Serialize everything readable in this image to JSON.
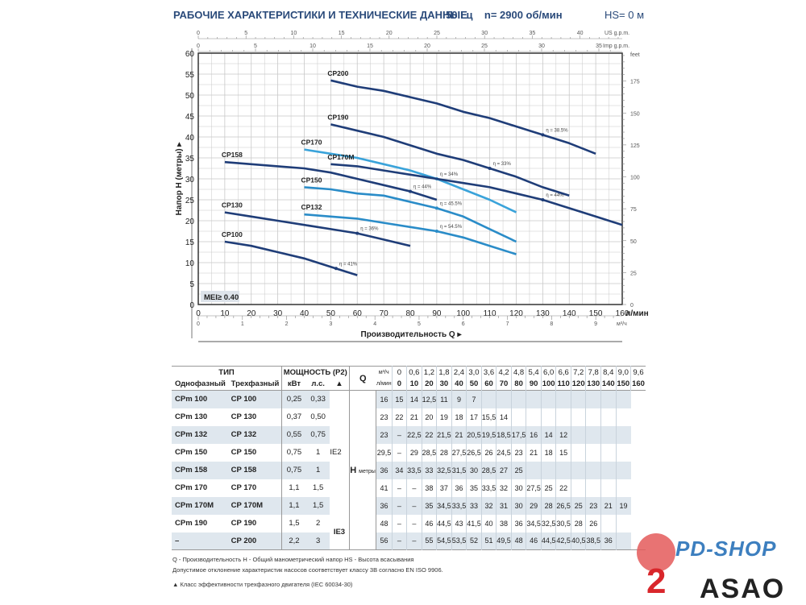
{
  "header": {
    "title": "РАБОЧИЕ ХАРАКТЕРИСТИКИ И ТЕХНИЧЕСКИЕ ДАННЫЕ",
    "conditions": "50 Гц    n= 2900 об/мин",
    "hs": "HS= 0 м"
  },
  "chart_data": {
    "type": "line",
    "xlabel": "Производительность Q ▸",
    "ylabel": "Напор H (метры) ▸",
    "x_unit": "л/мин",
    "xlim": [
      0,
      160
    ],
    "ylim": [
      0,
      60
    ],
    "x_ticks": [
      0,
      10,
      20,
      30,
      40,
      50,
      60,
      70,
      80,
      90,
      100,
      110,
      120,
      130,
      140,
      150,
      160
    ],
    "y_ticks": [
      0,
      5,
      10,
      15,
      20,
      25,
      30,
      35,
      40,
      45,
      50,
      55,
      60
    ],
    "feet_label": "feet",
    "feet_ticks": [
      0,
      25,
      50,
      75,
      100,
      125,
      150,
      175
    ],
    "usgpm_label": "US g.p.m.",
    "usgpm_ticks": [
      0,
      5,
      10,
      15,
      20,
      25,
      30,
      35,
      40
    ],
    "impgpm_label": "Imp g.p.m.",
    "impgpm_ticks": [
      0,
      5,
      10,
      15,
      20,
      25,
      30,
      35
    ],
    "m3h_label": "м³/ч",
    "m3h_ticks": [
      0,
      1,
      2,
      3,
      4,
      5,
      6,
      7,
      8,
      9
    ],
    "mei": "MEI≥ 0.40",
    "grid": true,
    "series": [
      {
        "name": "CP100",
        "color": "#1f3d78",
        "x": [
          10,
          20,
          30,
          40,
          50,
          60
        ],
        "y": [
          15,
          14,
          12.5,
          11,
          9,
          7
        ],
        "eta": "η = 41%",
        "eta_q": 52
      },
      {
        "name": "CP130",
        "color": "#1f3d78",
        "x": [
          10,
          20,
          30,
          40,
          50,
          60,
          70,
          80
        ],
        "y": [
          22,
          21,
          20,
          19,
          18,
          17,
          15.5,
          14
        ],
        "eta": "η = 36%",
        "eta_q": 60
      },
      {
        "name": "CP132",
        "color": "#2a8cc8",
        "x": [
          40,
          50,
          60,
          70,
          80,
          90,
          100,
          110,
          120
        ],
        "y": [
          21.5,
          21,
          20.5,
          19.5,
          18.5,
          17.5,
          16,
          14,
          12
        ],
        "eta": "η = 54.5%",
        "eta_q": 90
      },
      {
        "name": "CP150",
        "color": "#2a8cc8",
        "x": [
          40,
          50,
          60,
          70,
          80,
          90,
          100,
          110,
          120
        ],
        "y": [
          28,
          27.5,
          26.5,
          26,
          24.5,
          23,
          21,
          18,
          15
        ],
        "eta": "η = 45.5%",
        "eta_q": 90
      },
      {
        "name": "CP158",
        "color": "#1f3d78",
        "x": [
          10,
          20,
          30,
          40,
          50,
          60,
          70,
          80,
          90
        ],
        "y": [
          34,
          33.5,
          33,
          32.5,
          31.5,
          30,
          28.5,
          27,
          25
        ],
        "eta": "η = 44%",
        "eta_q": 80
      },
      {
        "name": "CP170",
        "color": "#3aa3da",
        "x": [
          40,
          50,
          60,
          70,
          80,
          90,
          100,
          110,
          120
        ],
        "y": [
          37,
          36,
          35,
          33.5,
          32,
          30,
          27.5,
          25,
          22
        ],
        "eta": "η = 34%",
        "eta_q": 90
      },
      {
        "name": "CP170M",
        "color": "#1f3d78",
        "x": [
          50,
          60,
          70,
          80,
          90,
          100,
          110,
          120,
          130,
          140,
          150,
          160
        ],
        "y": [
          33.5,
          33,
          32,
          31,
          30,
          29,
          28,
          26.5,
          25,
          23,
          21,
          19
        ],
        "eta": "η = 44%",
        "eta_q": 130
      },
      {
        "name": "CP190",
        "color": "#1f3d78",
        "x": [
          50,
          60,
          70,
          80,
          90,
          100,
          110,
          120,
          130,
          140
        ],
        "y": [
          43,
          41.5,
          40,
          38,
          36,
          34.5,
          32.5,
          30.5,
          28,
          26
        ],
        "eta": "η = 33%",
        "eta_q": 110
      },
      {
        "name": "CP200",
        "color": "#1f3d78",
        "x": [
          50,
          60,
          70,
          80,
          90,
          100,
          110,
          120,
          130,
          140,
          150
        ],
        "y": [
          53.5,
          52,
          51,
          49.5,
          48,
          46,
          44.5,
          42.5,
          40.5,
          38.5,
          36
        ],
        "eta": "η = 38.5%",
        "eta_q": 130
      }
    ]
  },
  "table": {
    "h_tip": "ТИП",
    "h_power": "МОЩНОСТЬ (P2)",
    "h_single": "Однофазный",
    "h_three": "Трехфазный",
    "h_kw": "кВт",
    "h_hp": "л.с.",
    "h_tri": "▲",
    "q": "Q",
    "m3h_unit": "м³/ч",
    "lmin_unit": "л/мин",
    "h": "H",
    "h_unit": "метры",
    "ie2": "IE2",
    "ie3": "IE3",
    "m3h": [
      "0",
      "0,6",
      "1,2",
      "1,8",
      "2,4",
      "3,0",
      "3,6",
      "4,2",
      "4,8",
      "5,4",
      "6,0",
      "6,6",
      "7,2",
      "7,8",
      "8,4",
      "9,0",
      "9,6"
    ],
    "lmin": [
      "0",
      "10",
      "20",
      "30",
      "40",
      "50",
      "60",
      "70",
      "80",
      "90",
      "100",
      "110",
      "120",
      "130",
      "140",
      "150",
      "160"
    ],
    "rows": [
      {
        "single": "CPm 100",
        "three": "CP 100",
        "kw": "0,25",
        "hp": "0,33",
        "h": [
          "16",
          "15",
          "14",
          "12,5",
          "11",
          "9",
          "7"
        ]
      },
      {
        "single": "CPm 130",
        "three": "CP 130",
        "kw": "0,37",
        "hp": "0,50",
        "h": [
          "23",
          "22",
          "21",
          "20",
          "19",
          "18",
          "17",
          "15,5",
          "14"
        ]
      },
      {
        "single": "CPm 132",
        "three": "CP 132",
        "kw": "0,55",
        "hp": "0,75",
        "h": [
          "23",
          "–",
          "22,5",
          "22",
          "21,5",
          "21",
          "20,5",
          "19,5",
          "18,5",
          "17,5",
          "16",
          "14",
          "12"
        ]
      },
      {
        "single": "CPm 150",
        "three": "CP 150",
        "kw": "0,75",
        "hp": "1",
        "h": [
          "29,5",
          "–",
          "29",
          "28,5",
          "28",
          "27,5",
          "26,5",
          "26",
          "24,5",
          "23",
          "21",
          "18",
          "15"
        ]
      },
      {
        "single": "CPm 158",
        "three": "CP 158",
        "kw": "0,75",
        "hp": "1",
        "h": [
          "36",
          "34",
          "33,5",
          "33",
          "32,5",
          "31,5",
          "30",
          "28,5",
          "27",
          "25"
        ]
      },
      {
        "single": "CPm 170",
        "three": "CP 170",
        "kw": "1,1",
        "hp": "1,5",
        "h": [
          "41",
          "–",
          "–",
          "38",
          "37",
          "36",
          "35",
          "33,5",
          "32",
          "30",
          "27,5",
          "25",
          "22"
        ]
      },
      {
        "single": "CPm 170M",
        "three": "CP 170M",
        "kw": "1,1",
        "hp": "1,5",
        "h": [
          "36",
          "–",
          "–",
          "35",
          "34,5",
          "33,5",
          "33",
          "32",
          "31",
          "30",
          "29",
          "28",
          "26,5",
          "25",
          "23",
          "21",
          "19"
        ]
      },
      {
        "single": "CPm 190",
        "three": "CP 190",
        "kw": "1,5",
        "hp": "2",
        "h": [
          "48",
          "–",
          "–",
          "46",
          "44,5",
          "43",
          "41,5",
          "40",
          "38",
          "36",
          "34,5",
          "32,5",
          "30,5",
          "28",
          "26"
        ]
      },
      {
        "single": "–",
        "three": "CP 200",
        "kw": "2,2",
        "hp": "3",
        "h": [
          "56",
          "–",
          "–",
          "55",
          "54,5",
          "53,5",
          "52",
          "51",
          "49,5",
          "48",
          "46",
          "44,5",
          "42,5",
          "40,5",
          "38,5",
          "36"
        ]
      }
    ]
  },
  "notes": {
    "line1": "Q - Производительность   H - Общий манометрический напор   HS - Высота всасывания",
    "line2": "Допустимое отклонение характеристик насосов соответствует классу 3B согласно EN ISO 9906.",
    "line3": "▲   Класс эффективности трехфазного двигателя (IEC 60034-30)"
  },
  "logos": {
    "pdshop": "PD-SHOP",
    "asao": "ASAO"
  }
}
